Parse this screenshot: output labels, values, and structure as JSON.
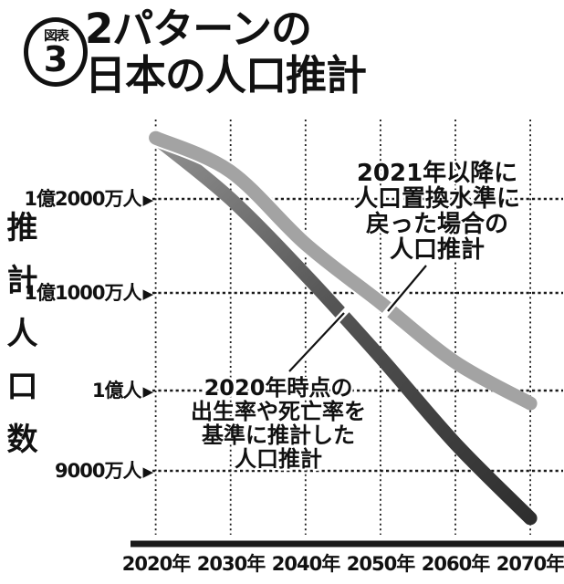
{
  "figure": {
    "badge_label": "図表",
    "badge_number": "3",
    "title_line1": "2パターンの",
    "title_line2": "日本の人口推計"
  },
  "y_axis": {
    "unit_label": "推計人口数",
    "tick_arrow": "▶",
    "ticks": [
      {
        "label": "1億2000万人",
        "value_million": 120
      },
      {
        "label": "1億1000万人",
        "value_million": 110
      },
      {
        "label": "1億人",
        "value_million": 100
      },
      {
        "label": "9000万人",
        "value_million": 90
      }
    ]
  },
  "x_axis": {
    "labels": [
      "2020年",
      "2030年",
      "2040年",
      "2050年",
      "2060年",
      "2070年"
    ]
  },
  "annotations": {
    "replacement": {
      "lines": [
        "2021年以降に",
        "人口置換水準に",
        "戻った場合の",
        "人口推計"
      ]
    },
    "baseline": {
      "lines": [
        "2020年時点の",
        "出生率や死亡率を",
        "基準に推計した",
        "人口推計"
      ]
    }
  },
  "colors": {
    "text": "#111111",
    "grid": "#1a1a1a",
    "replacement_line": "#a3a3a3",
    "baseline_line_start": "#919191",
    "baseline_line_end": "#2e2e2e"
  },
  "chart_data": {
    "type": "line",
    "title": "2パターンの日本の人口推計",
    "x": [
      2020,
      2030,
      2040,
      2050,
      2060,
      2070
    ],
    "xlabel": "年",
    "ylabel": "推計人口数",
    "yticks_million": [
      120,
      110,
      100,
      90
    ],
    "ylim_million": [
      82,
      128
    ],
    "grid": "dotted",
    "legend_position": "annotated-on-plot",
    "series": [
      {
        "name": "2021年以降に人口置換水準に戻った場合の人口推計",
        "values_million": [
          126.5,
          122.9,
          115.2,
          109.0,
          102.9,
          98.4
        ],
        "style": "thick light-gray"
      },
      {
        "name": "2020年時点の出生率や死亡率を基準に推計した人口推計",
        "values_million": [
          126.5,
          120.0,
          111.9,
          103.4,
          93.4,
          84.1
        ],
        "style": "thick dark-gray gradient"
      }
    ]
  }
}
